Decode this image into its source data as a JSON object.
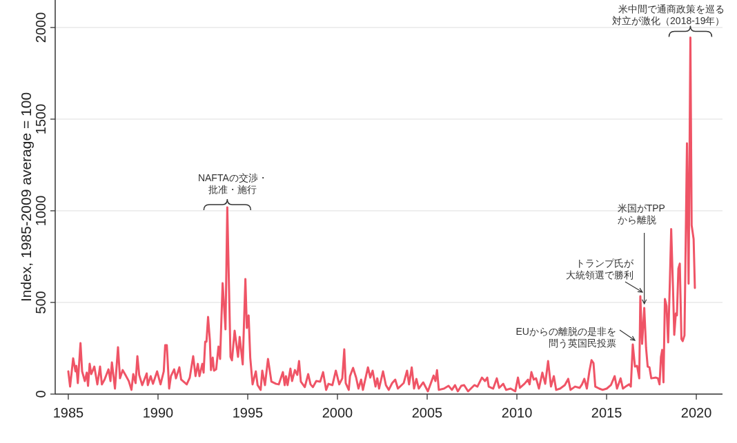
{
  "chart_data": {
    "type": "line",
    "ylabel": "Index, 1985-2009 average = 100",
    "xlim": [
      1984.27,
      2021.46
    ],
    "xticks": [
      1985,
      1990,
      1995,
      2000,
      2005,
      2010,
      2015,
      2020
    ],
    "ylim": [
      0,
      2150
    ],
    "yticks": [
      0,
      500,
      1000,
      1500,
      2000
    ],
    "grid": "y",
    "series": [
      {
        "color": "#ef5466",
        "x": [
          1985.0,
          1985.1,
          1985.27,
          1985.4,
          1985.45,
          1985.53,
          1985.68,
          1985.77,
          1985.92,
          1986.03,
          1986.1,
          1986.19,
          1986.28,
          1986.45,
          1986.62,
          1986.77,
          1986.87,
          1987.02,
          1987.24,
          1987.35,
          1987.43,
          1987.6,
          1987.77,
          1987.88,
          1988.03,
          1988.18,
          1988.37,
          1988.52,
          1988.62,
          1988.75,
          1988.85,
          1988.95,
          1989.12,
          1989.37,
          1989.43,
          1989.59,
          1989.72,
          1989.95,
          1990.14,
          1990.32,
          1990.4,
          1990.49,
          1990.62,
          1990.72,
          1990.9,
          1991.0,
          1991.19,
          1991.29,
          1991.6,
          1991.77,
          1991.96,
          1992.09,
          1992.22,
          1992.31,
          1992.47,
          1992.54,
          1992.63,
          1992.7,
          1992.79,
          1992.89,
          1992.95,
          1993.05,
          1993.12,
          1993.24,
          1993.37,
          1993.46,
          1993.6,
          1993.76,
          1993.86,
          1994.04,
          1994.12,
          1994.27,
          1994.46,
          1994.55,
          1994.72,
          1994.87,
          1994.95,
          1995.05,
          1995.14,
          1995.27,
          1995.45,
          1995.55,
          1995.72,
          1995.81,
          1995.96,
          1996.13,
          1996.32,
          1996.58,
          1996.73,
          1996.96,
          1997.06,
          1997.13,
          1997.22,
          1997.38,
          1997.47,
          1997.63,
          1997.76,
          1997.86,
          1997.96,
          1998.18,
          1998.37,
          1998.5,
          1998.63,
          1998.82,
          1999.04,
          1999.2,
          1999.37,
          1999.5,
          1999.72,
          1999.91,
          2000.1,
          2000.27,
          2000.38,
          2000.46,
          2000.63,
          2000.7,
          2000.87,
          2001.04,
          2001.17,
          2001.32,
          2001.42,
          2001.7,
          2001.83,
          2001.96,
          2002.12,
          2002.22,
          2002.32,
          2002.54,
          2002.7,
          2002.86,
          2003.05,
          2003.22,
          2003.37,
          2003.69,
          2003.88,
          2003.99,
          2004.14,
          2004.27,
          2004.4,
          2004.53,
          2004.78,
          2005.04,
          2005.36,
          2005.46,
          2005.55,
          2005.65,
          2005.94,
          2006.19,
          2006.38,
          2006.55,
          2006.71,
          2006.9,
          2007.06,
          2007.28,
          2007.63,
          2007.8,
          2008.05,
          2008.22,
          2008.35,
          2008.43,
          2008.68,
          2008.88,
          2009.01,
          2009.24,
          2009.4,
          2009.65,
          2009.91,
          2010.06,
          2010.17,
          2010.42,
          2010.62,
          2010.71,
          2010.81,
          2010.94,
          2011.07,
          2011.23,
          2011.42,
          2011.58,
          2011.74,
          2011.9,
          2012.06,
          2012.19,
          2012.41,
          2012.67,
          2012.86,
          2012.99,
          2013.24,
          2013.5,
          2013.63,
          2013.76,
          2013.9,
          2014.04,
          2014.16,
          2014.27,
          2014.37,
          2014.59,
          2014.78,
          2015.01,
          2015.24,
          2015.45,
          2015.58,
          2015.78,
          2015.91,
          2016.06,
          2016.26,
          2016.35,
          2016.46,
          2016.58,
          2016.7,
          2016.82,
          2016.88,
          2016.98,
          2017.1,
          2017.2,
          2017.29,
          2017.39,
          2017.49,
          2017.75,
          2017.86,
          2017.95,
          2018.03,
          2018.1,
          2018.17,
          2018.25,
          2018.34,
          2018.43,
          2018.53,
          2018.6,
          2018.71,
          2018.77,
          2018.86,
          2018.92,
          2019.0,
          2019.08,
          2019.17,
          2019.24,
          2019.34,
          2019.48,
          2019.57,
          2019.67,
          2019.74,
          2019.85,
          2019.92
        ],
        "values": [
          124,
          41,
          195,
          124,
          154,
          60,
          278,
          124,
          71,
          117,
          45,
          165,
          109,
          150,
          53,
          150,
          53,
          79,
          135,
          71,
          173,
          30,
          256,
          86,
          131,
          105,
          71,
          23,
          109,
          60,
          207,
          105,
          49,
          113,
          49,
          98,
          56,
          124,
          53,
          124,
          267,
          267,
          30,
          98,
          135,
          86,
          146,
          79,
          53,
          90,
          207,
          98,
          165,
          98,
          165,
          117,
          286,
          286,
          421,
          293,
          131,
          199,
          128,
          135,
          259,
          192,
          605,
          353,
          1019,
          203,
          184,
          346,
          203,
          312,
          162,
          628,
          361,
          429,
          199,
          53,
          124,
          49,
          23,
          128,
          49,
          192,
          68,
          56,
          53,
          120,
          49,
          98,
          49,
          139,
          71,
          131,
          105,
          180,
          68,
          38,
          109,
          53,
          38,
          71,
          68,
          120,
          23,
          56,
          49,
          128,
          53,
          86,
          244,
          60,
          23,
          98,
          143,
          90,
          30,
          79,
          23,
          146,
          90,
          128,
          41,
          86,
          30,
          124,
          49,
          23,
          60,
          79,
          30,
          60,
          128,
          53,
          146,
          30,
          83,
          30,
          64,
          15,
          101,
          71,
          131,
          23,
          30,
          45,
          23,
          49,
          15,
          45,
          49,
          15,
          49,
          41,
          90,
          71,
          90,
          41,
          30,
          86,
          34,
          56,
          23,
          30,
          15,
          90,
          34,
          56,
          79,
          53,
          120,
          79,
          86,
          30,
          117,
          56,
          180,
          41,
          98,
          23,
          30,
          49,
          83,
          23,
          41,
          34,
          53,
          83,
          30,
          124,
          185,
          169,
          41,
          30,
          23,
          30,
          49,
          98,
          30,
          86,
          30,
          41,
          53,
          41,
          271,
          150,
          154,
          86,
          534,
          274,
          470,
          252,
          150,
          146,
          86,
          90,
          86,
          53,
          203,
          241,
          64,
          519,
          481,
          282,
          628,
          900,
          545,
          323,
          440,
          430,
          684,
          712,
          301,
          289,
          320,
          1368,
          602,
          1945,
          921,
          846,
          579
        ]
      }
    ],
    "annotations": [
      {
        "text": "NAFTAの交渉・批准・施行",
        "x": 1993.86,
        "y": 1019
      },
      {
        "text": "米中間で通商政策を巡る対立が激化（2018-19年）",
        "x": 2019.67,
        "y": 1945
      },
      {
        "text": "EUからの離脱の是非を問う英国民投票",
        "x": 2016.46,
        "y": 271
      },
      {
        "text": "トランプ氏が大統領選で勝利",
        "x": 2016.88,
        "y": 534
      },
      {
        "text": "米国がTPPから離脱",
        "x": 2017.1,
        "y": 470
      }
    ]
  }
}
